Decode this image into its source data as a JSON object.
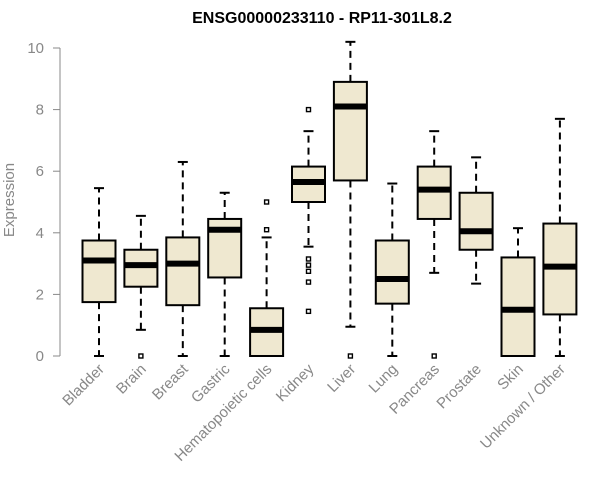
{
  "chart_data": {
    "type": "boxplot",
    "title": "ENSG00000233110 - RP11-301L8.2",
    "ylabel": "Expression",
    "xlabel": "",
    "ylim": [
      0,
      10
    ],
    "yticks": [
      0,
      2,
      4,
      6,
      8,
      10
    ],
    "box_fill": "#efe8d0",
    "categories": [
      "Bladder",
      "Brain",
      "Breast",
      "Gastric",
      "Hematopoietic cells",
      "Kidney",
      "Liver",
      "Lung",
      "Pancreas",
      "Prostate",
      "Skin",
      "Unknown / Other"
    ],
    "boxes": [
      {
        "min": 0,
        "q1": 1.75,
        "median": 3.1,
        "q3": 3.75,
        "max": 5.45,
        "outliers": []
      },
      {
        "min": 0.85,
        "q1": 2.25,
        "median": 2.95,
        "q3": 3.45,
        "max": 4.55,
        "outliers": [
          0
        ]
      },
      {
        "min": 0,
        "q1": 1.65,
        "median": 3.0,
        "q3": 3.85,
        "max": 6.3,
        "outliers": []
      },
      {
        "min": 0,
        "q1": 2.55,
        "median": 4.1,
        "q3": 4.45,
        "max": 5.3,
        "outliers": []
      },
      {
        "min": 0,
        "q1": 0,
        "median": 0.85,
        "q3": 1.55,
        "max": 3.85,
        "outliers": [
          4.1,
          5.0
        ]
      },
      {
        "min": 3.55,
        "q1": 5.0,
        "median": 5.65,
        "q3": 6.15,
        "max": 7.3,
        "outliers": [
          8.0,
          3.15,
          2.95,
          2.75,
          2.4,
          1.45
        ]
      },
      {
        "min": 0.95,
        "q1": 5.7,
        "median": 8.1,
        "q3": 8.9,
        "max": 10.2,
        "outliers": [
          0
        ]
      },
      {
        "min": 0,
        "q1": 1.7,
        "median": 2.5,
        "q3": 3.75,
        "max": 5.6,
        "outliers": []
      },
      {
        "min": 2.7,
        "q1": 4.45,
        "median": 5.4,
        "q3": 6.15,
        "max": 7.3,
        "outliers": [
          0
        ]
      },
      {
        "min": 2.35,
        "q1": 3.45,
        "median": 4.05,
        "q3": 5.3,
        "max": 6.45,
        "outliers": []
      },
      {
        "min": 0,
        "q1": 0,
        "median": 1.5,
        "q3": 3.2,
        "max": 4.15,
        "outliers": []
      },
      {
        "min": 0,
        "q1": 1.35,
        "median": 2.9,
        "q3": 4.3,
        "max": 7.7,
        "outliers": []
      }
    ]
  }
}
